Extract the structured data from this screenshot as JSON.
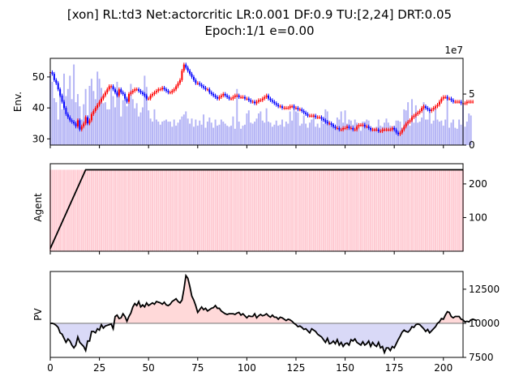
{
  "title_line1": "[xon] RL:td3 Net:actorcritic LR:0.001 DF:0.9 TU:[2,24] DRT:0.05",
  "title_line2": "Epoch:1/1 e=0.00",
  "chart_data": [
    {
      "panel": "env",
      "type": "candlestick+bar",
      "ylabel": "Env.",
      "y2_offset_label": "1e7",
      "xlim": [
        0,
        210
      ],
      "ylim": [
        28,
        56
      ],
      "y2lim": [
        0,
        8.5
      ],
      "yticks": [
        30,
        40,
        50
      ],
      "y2ticks": [
        0,
        5
      ],
      "colors": {
        "volume": "#b3b3f5",
        "up": "#ff0000",
        "down": "#0000ff"
      },
      "price_close": [
        51.5,
        51,
        49,
        48,
        46,
        44,
        42,
        40,
        38,
        37,
        36,
        35.5,
        35,
        34,
        36,
        33,
        34,
        35,
        37,
        35,
        36,
        38,
        39,
        40,
        41,
        42,
        43,
        44,
        45,
        46,
        47,
        47,
        46,
        45,
        44,
        46,
        45,
        44.5,
        43,
        42,
        44.5,
        45,
        45.5,
        46,
        46,
        45.5,
        45,
        44.5,
        44,
        43,
        43,
        44,
        44.5,
        45,
        45.5,
        46,
        46,
        46.5,
        46,
        45.5,
        45,
        45,
        45.5,
        46,
        47,
        48,
        49,
        52,
        54,
        53,
        52,
        51,
        50,
        49,
        48,
        48,
        47.5,
        47,
        46.5,
        46,
        46,
        45,
        44.5,
        44,
        43.5,
        43,
        43.5,
        44,
        44.5,
        44,
        43.5,
        43,
        43,
        43.5,
        44,
        44,
        43.5,
        43.5,
        43.5,
        43,
        43,
        42.5,
        42,
        42,
        41.5,
        42,
        42.5,
        42.5,
        43,
        43.5,
        44,
        43,
        42.5,
        42,
        41.5,
        41,
        40.5,
        40.5,
        40,
        40,
        40,
        40,
        40.5,
        40.5,
        40,
        40,
        39.5,
        39.5,
        39,
        38.5,
        38,
        37.5,
        37.5,
        37.5,
        37.5,
        37,
        37,
        37,
        36.5,
        36,
        35.5,
        35,
        35,
        34.5,
        34,
        33.5,
        33.5,
        33,
        33,
        33.5,
        33.5,
        34,
        33.5,
        33.5,
        33,
        33,
        34,
        34.5,
        34.5,
        34.5,
        34,
        34,
        33.5,
        33,
        33,
        33,
        33,
        32.5,
        32.5,
        33,
        33,
        33,
        33,
        33,
        33.5,
        33,
        32,
        31.5,
        32,
        33,
        34,
        35,
        35.5,
        36,
        37,
        37.5,
        38,
        38.5,
        39,
        40,
        40.5,
        40,
        39.5,
        39,
        39.5,
        40,
        40.5,
        41,
        42,
        43,
        43.5,
        43.5,
        43,
        43,
        42.5,
        42,
        42,
        42,
        42,
        41.5,
        41.5,
        41.5,
        42,
        42,
        42,
        42
      ],
      "volume_1e7": [
        7,
        6.2,
        4.6,
        4.2,
        2.5,
        5.2,
        3.5,
        7,
        4.8,
        5.5,
        6.8,
        4.5,
        7.9,
        4.2,
        5,
        3.8,
        2.5,
        4,
        5.5,
        2.6,
        5.8,
        6.5,
        5.3,
        4.5,
        7.2,
        6.5,
        5.6,
        4.1,
        4.2,
        3.5,
        3.5,
        5.6,
        4.8,
        3.7,
        6.2,
        5.4,
        2.8,
        4.4,
        4.4,
        3.8,
        4.1,
        6,
        4.5,
        3.6,
        4.1,
        2.8,
        3.2,
        3.7,
        6.8,
        5.7,
        3.4,
        2.6,
        2.3,
        3.5,
        2.5,
        2.3,
        2,
        2.3,
        2.4,
        2.5,
        2.3,
        2.3,
        1.8,
        2.5,
        1.9,
        2.2,
        2.5,
        2.8,
        3,
        3.3,
        2.6,
        2.1,
        2.6,
        1.8,
        2.5,
        1.9,
        2.4,
        2,
        3,
        1.7,
        2.3,
        2.7,
        2.2,
        1.7,
        2.5,
        1.9,
        2,
        2.5,
        2.3,
        2.1,
        1.9,
        1.8,
        1.9,
        2.8,
        1.6,
        5.5,
        2.3,
        1.6,
        1.9,
        2,
        3.1,
        3.4,
        2.2,
        2.1,
        2.3,
        2.6,
        3.1,
        3.3,
        2.4,
        2.2,
        3.6,
        2.3,
        2.2,
        1.8,
        2,
        2.4,
        1.9,
        2,
        2.5,
        1.8,
        2.3,
        2.1,
        3.3,
        2.4,
        4,
        3.3,
        3.2,
        1.9,
        2.1,
        2.9,
        2.1,
        1.7,
        2.2,
        2.5,
        3,
        1.8,
        2.1,
        1.7,
        2.5,
        2.1,
        3.5,
        3.3,
        2.4,
        1.9,
        2.1,
        1.8,
        2.7,
        2.5,
        3.3,
        2.2,
        3.4,
        2.1,
        2.5,
        2.4,
        2,
        2.5,
        2.2,
        1.7,
        1.4,
        2.3,
        2.3,
        2.5,
        2.4,
        1.7,
        1.7,
        1.6,
        1.8,
        2.5,
        1.9,
        1.8,
        2.2,
        2.6,
        2.2,
        1.9,
        1.8,
        1.9,
        2.4,
        2.4,
        2.3,
        1.7,
        3.5,
        3.4,
        4.2,
        1.9,
        4.5,
        2.2,
        3.9,
        2.2,
        2.3,
        2.7,
        4.2,
        2.5,
        2.5,
        3.2,
        2.1,
        2.4,
        3.7,
        2.5,
        2.3,
        2.4,
        1.9,
        2.5,
        4.9,
        1.7,
        2.2,
        2.5,
        1.7,
        1.6,
        2.5,
        2,
        4.1,
        1.8,
        2.3,
        3.1,
        2.9
      ]
    },
    {
      "panel": "agent",
      "type": "line+bar",
      "ylabel": "Agent",
      "xlim": [
        0,
        210
      ],
      "ylim": [
        0,
        260
      ],
      "yticks": [
        100,
        200
      ],
      "line_points_x": [
        0,
        18,
        210
      ],
      "line_points_y": [
        8,
        242,
        242
      ],
      "bar_value": 242,
      "colors": {
        "line": "#000000",
        "bar": "#ffc9d1"
      }
    },
    {
      "panel": "pv",
      "type": "line+fill",
      "ylabel": "PV",
      "xlim": [
        0,
        210
      ],
      "ylim": [
        7500,
        13800
      ],
      "yticks": [
        7500,
        10000,
        12500
      ],
      "baseline": 10000,
      "x_axis_ticks": [
        0,
        25,
        50,
        75,
        100,
        125,
        150,
        175,
        200
      ],
      "colors": {
        "line": "#000000",
        "above": "#ffd9d9",
        "below": "#d9d9f7",
        "baseline": "#808080"
      },
      "values": [
        10000,
        10000,
        9950,
        9850,
        9700,
        9300,
        9200,
        8900,
        8600,
        8850,
        8700,
        8400,
        8200,
        8400,
        9000,
        8600,
        8450,
        8300,
        8000,
        8700,
        8700,
        9400,
        9400,
        9300,
        9600,
        9500,
        9900,
        9650,
        9800,
        9850,
        9900,
        9950,
        9600,
        10500,
        10600,
        10350,
        10400,
        10700,
        10500,
        10150,
        10500,
        10750,
        11200,
        11450,
        11300,
        11600,
        11200,
        11350,
        11200,
        11500,
        11300,
        11400,
        11500,
        11400,
        11600,
        11550,
        11500,
        11400,
        11550,
        11350,
        11300,
        11400,
        11600,
        11700,
        11800,
        11600,
        11500,
        11700,
        12500,
        13500,
        13300,
        12700,
        12000,
        11700,
        11300,
        10800,
        11000,
        11200,
        11000,
        11100,
        10900,
        11000,
        11100,
        11150,
        11300,
        11100,
        11100,
        10900,
        10800,
        10700,
        10650,
        10700,
        10700,
        10700,
        10650,
        10750,
        10800,
        10600,
        10700,
        10550,
        10400,
        10550,
        10500,
        10500,
        10700,
        10400,
        10550,
        10650,
        10550,
        10600,
        10700,
        10550,
        10450,
        10600,
        10450,
        10450,
        10300,
        10450,
        10400,
        10300,
        10200,
        10300,
        10250,
        10150,
        10000,
        9900,
        9750,
        9800,
        9700,
        9550,
        9600,
        9450,
        9300,
        9600,
        9500,
        9400,
        9200,
        9100,
        9000,
        8800,
        8600,
        8900,
        8500,
        8550,
        8700,
        8500,
        8800,
        8400,
        8600,
        8300,
        8500,
        8550,
        8400,
        8800,
        8700,
        8850,
        8600,
        8500,
        8400,
        8650,
        8400,
        8500,
        8700,
        8300,
        8600,
        8400,
        8300,
        8600,
        8200,
        8300,
        7850,
        8200,
        8200,
        8000,
        8300,
        8200,
        8500,
        8800,
        9050,
        9350,
        9500,
        9400,
        9350,
        9500,
        9750,
        9700,
        9900,
        9950,
        9900,
        9750,
        9600,
        9400,
        9550,
        9300,
        9450,
        9600,
        9750,
        10000,
        10100,
        10350,
        10300,
        10600,
        10850,
        10800,
        10500,
        10400,
        10500,
        10500,
        10500,
        10300,
        10250,
        10100,
        10150,
        10100,
        10250,
        10300,
        10250,
        10200
      ]
    }
  ]
}
